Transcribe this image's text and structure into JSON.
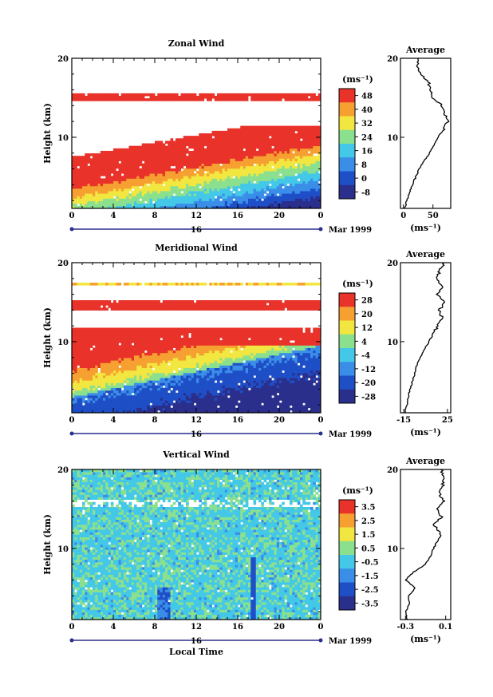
{
  "chart_data": [
    {
      "type": "heatmap",
      "title": "Zonal Wind",
      "ylabel": "Height (km)",
      "ylim": [
        1,
        20
      ],
      "y_ticks": [
        "10",
        "20"
      ],
      "x_ticks": [
        "0",
        "4",
        "8",
        "12",
        "16",
        "20",
        "0"
      ],
      "xlim": [
        0,
        24
      ],
      "date_label": "16",
      "month_label": "Mar 1999",
      "colorbar": {
        "unit_label": "(ms⁻¹)",
        "ticks": [
          "48",
          "40",
          "32",
          "24",
          "16",
          "8",
          "0",
          "-8"
        ],
        "range": [
          -12,
          52
        ]
      },
      "profile": {
        "title": "Average",
        "ticks": [
          "0",
          "50"
        ],
        "xlim": [
          -5,
          80
        ],
        "xlabel": "(ms⁻¹)",
        "heights": [
          1,
          2,
          3,
          4,
          5,
          6,
          7,
          8,
          9,
          10,
          11,
          12,
          13,
          14,
          15,
          16,
          17,
          18,
          19,
          20
        ],
        "values": [
          2,
          6,
          10,
          15,
          21,
          27,
          35,
          44,
          52,
          58,
          68,
          75,
          70,
          65,
          50,
          45,
          42,
          30,
          22,
          25
        ]
      }
    },
    {
      "type": "heatmap",
      "title": "Meridional Wind",
      "ylabel": "Height (km)",
      "ylim": [
        1,
        20
      ],
      "y_ticks": [
        "10",
        "20"
      ],
      "x_ticks": [
        "0",
        "4",
        "8",
        "12",
        "16",
        "20",
        "0"
      ],
      "xlim": [
        0,
        24
      ],
      "date_label": "16",
      "month_label": "Mar 1999",
      "colorbar": {
        "unit_label": "(ms⁻¹)",
        "ticks": [
          "28",
          "20",
          "12",
          "4",
          "-4",
          "-12",
          "-20",
          "-28"
        ],
        "range": [
          -32,
          32
        ]
      },
      "profile": {
        "title": "Average",
        "ticks": [
          "-15",
          "25"
        ],
        "xlim": [
          -18,
          28
        ],
        "xlabel": "(ms⁻¹)",
        "heights": [
          1,
          2,
          3,
          4,
          5,
          6,
          7,
          8,
          9,
          10,
          11,
          12,
          13,
          14,
          15,
          16,
          17,
          18,
          19,
          20
        ],
        "values": [
          -14,
          -12,
          -11,
          -9,
          -7,
          -5,
          -3,
          0,
          4,
          8,
          12,
          16,
          20,
          18,
          22,
          16,
          20,
          15,
          18,
          22
        ]
      }
    },
    {
      "type": "heatmap",
      "title": "Vertical Wind",
      "ylabel": "Height (km)",
      "ylim": [
        1,
        20
      ],
      "y_ticks": [
        "10",
        "20"
      ],
      "x_ticks": [
        "0",
        "4",
        "8",
        "12",
        "16",
        "20",
        "0"
      ],
      "xlim": [
        0,
        24
      ],
      "date_label": "16",
      "month_label": "Mar 1999",
      "xlabel": "Local Time",
      "colorbar": {
        "unit_label": "(ms⁻¹)",
        "ticks": [
          "3.5",
          "2.5",
          "1.5",
          "0.5",
          "-0.5",
          "-1.5",
          "-2.5",
          "-3.5"
        ],
        "range": [
          -4,
          4
        ]
      },
      "profile": {
        "title": "Average",
        "ticks": [
          "-0.3",
          "0.1"
        ],
        "xlim": [
          -0.35,
          0.15
        ],
        "xlabel": "(ms⁻¹)",
        "heights": [
          1,
          2,
          3,
          4,
          5,
          6,
          7,
          8,
          9,
          10,
          11,
          12,
          13,
          14,
          15,
          16,
          17,
          18,
          19,
          20
        ],
        "values": [
          -0.28,
          -0.3,
          -0.26,
          -0.27,
          -0.2,
          -0.3,
          -0.22,
          -0.1,
          -0.05,
          -0.02,
          0.02,
          0.05,
          -0.02,
          0.06,
          0.02,
          0.08,
          0.03,
          0.07,
          0.09,
          0.05
        ]
      }
    }
  ]
}
